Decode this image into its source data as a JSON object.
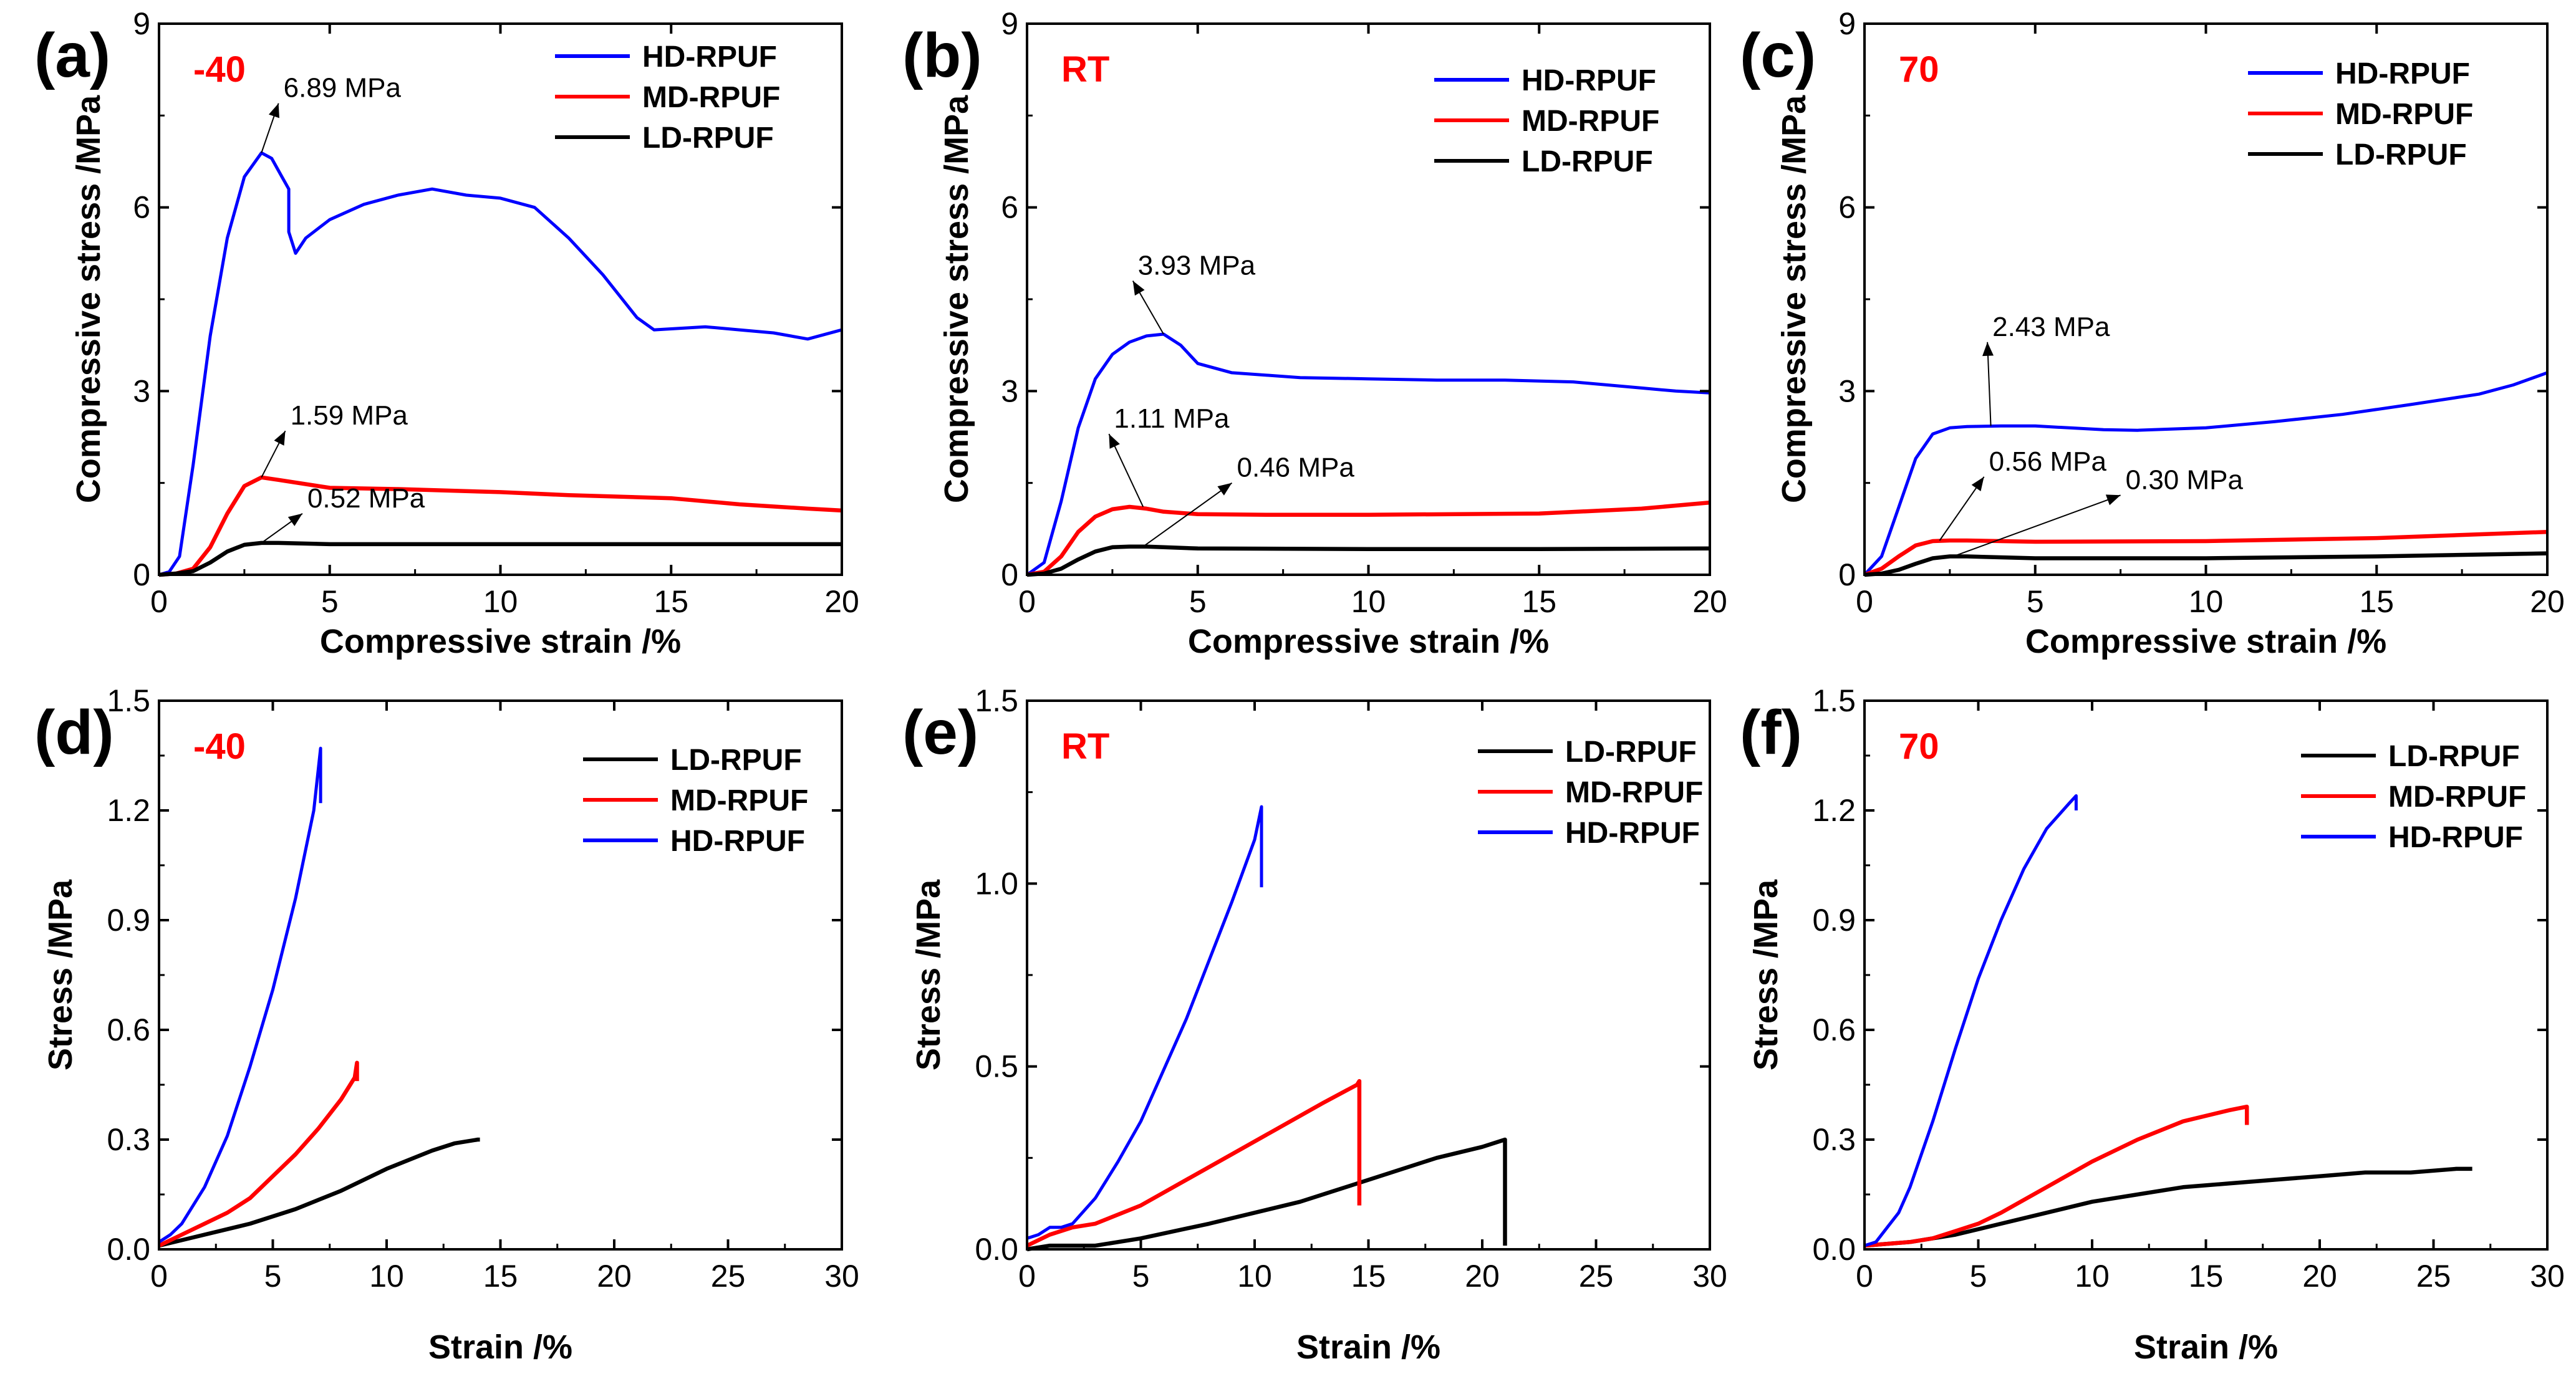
{
  "colors": {
    "blue": "#0000ff",
    "red": "#ff0000",
    "black": "#000000",
    "condition": "#ff0000"
  },
  "chart_data": [
    {
      "type": "line",
      "panel_label": "(a)",
      "condition": "-40",
      "xlabel": "Compressive strain /%",
      "ylabel": "Compressive stress /MPa",
      "xlim": [
        0,
        20
      ],
      "ylim": [
        0,
        9
      ],
      "xticks": [
        0,
        5,
        10,
        15,
        20
      ],
      "xtick_labels": [
        "0",
        "5",
        "10",
        "15",
        "20"
      ],
      "yticks": [
        0,
        3,
        6,
        9
      ],
      "ytick_labels": [
        "0",
        "3",
        "6",
        "9"
      ],
      "legend_order": [
        "HD-RPUF",
        "MD-RPUF",
        "LD-RPUF"
      ],
      "series": [
        {
          "name": "HD-RPUF",
          "color": "blue",
          "x": [
            0,
            0.3,
            0.6,
            1,
            1.5,
            2,
            2.5,
            3,
            3.3,
            3.6,
            3.8,
            3.8,
            4,
            4.3,
            5,
            6,
            7,
            8,
            9,
            10,
            11,
            12,
            13,
            14,
            14.5,
            16,
            17,
            18,
            19,
            20
          ],
          "y": [
            0,
            0.05,
            0.3,
            1.8,
            3.9,
            5.5,
            6.5,
            6.89,
            6.8,
            6.5,
            6.3,
            5.6,
            5.25,
            5.5,
            5.8,
            6.05,
            6.2,
            6.3,
            6.2,
            6.15,
            6.0,
            5.5,
            4.9,
            4.2,
            4.0,
            4.05,
            4.0,
            3.95,
            3.85,
            4.0
          ]
        },
        {
          "name": "MD-RPUF",
          "color": "red",
          "x": [
            0,
            0.5,
            1,
            1.5,
            2,
            2.5,
            3,
            3.5,
            5,
            7,
            10,
            12,
            15,
            17,
            19,
            20
          ],
          "y": [
            0,
            0.02,
            0.1,
            0.45,
            1.0,
            1.45,
            1.59,
            1.55,
            1.42,
            1.4,
            1.35,
            1.3,
            1.25,
            1.15,
            1.08,
            1.05
          ]
        },
        {
          "name": "LD-RPUF",
          "color": "black",
          "x": [
            0,
            0.5,
            1,
            1.5,
            2,
            2.5,
            3,
            3.5,
            5,
            10,
            15,
            20
          ],
          "y": [
            0,
            0.02,
            0.06,
            0.2,
            0.38,
            0.49,
            0.52,
            0.52,
            0.5,
            0.5,
            0.5,
            0.5
          ]
        }
      ],
      "annotations": [
        {
          "text": "6.89 MPa",
          "x": 3.0,
          "y": 6.89,
          "tx": 3.5,
          "ty": 7.7
        },
        {
          "text": "1.59 MPa",
          "x": 3.0,
          "y": 1.59,
          "tx": 3.7,
          "ty": 2.35
        },
        {
          "text": "0.52 MPa",
          "x": 3.0,
          "y": 0.52,
          "tx": 4.2,
          "ty": 1.0
        }
      ]
    },
    {
      "type": "line",
      "panel_label": "(b)",
      "condition": "RT",
      "xlabel": "Compressive strain /%",
      "ylabel": "Compressive stress /MPa",
      "xlim": [
        0,
        20
      ],
      "ylim": [
        0,
        9
      ],
      "xticks": [
        0,
        5,
        10,
        15,
        20
      ],
      "xtick_labels": [
        "0",
        "5",
        "10",
        "15",
        "20"
      ],
      "yticks": [
        0,
        3,
        6,
        9
      ],
      "ytick_labels": [
        "0",
        "3",
        "6",
        "9"
      ],
      "legend_order": [
        "HD-RPUF",
        "MD-RPUF",
        "LD-RPUF"
      ],
      "series": [
        {
          "name": "HD-RPUF",
          "color": "blue",
          "x": [
            0,
            0.5,
            1,
            1.5,
            2,
            2.5,
            3,
            3.5,
            4,
            4.5,
            5,
            6,
            8,
            10,
            12,
            14,
            16,
            18,
            19,
            20
          ],
          "y": [
            0,
            0.2,
            1.2,
            2.4,
            3.2,
            3.6,
            3.8,
            3.9,
            3.93,
            3.75,
            3.45,
            3.3,
            3.22,
            3.2,
            3.18,
            3.18,
            3.15,
            3.05,
            3.0,
            2.97
          ]
        },
        {
          "name": "MD-RPUF",
          "color": "red",
          "x": [
            0,
            0.5,
            1,
            1.5,
            2,
            2.5,
            3,
            3.5,
            4,
            5,
            7,
            10,
            15,
            18,
            20
          ],
          "y": [
            0,
            0.05,
            0.3,
            0.7,
            0.95,
            1.07,
            1.11,
            1.08,
            1.03,
            0.99,
            0.98,
            0.98,
            1.0,
            1.08,
            1.18
          ]
        },
        {
          "name": "LD-RPUF",
          "color": "black",
          "x": [
            0,
            0.5,
            1,
            1.5,
            2,
            2.5,
            3,
            3.5,
            4,
            5,
            10,
            15,
            20
          ],
          "y": [
            0,
            0.02,
            0.1,
            0.25,
            0.38,
            0.45,
            0.46,
            0.46,
            0.45,
            0.43,
            0.42,
            0.42,
            0.43
          ]
        }
      ],
      "annotations": [
        {
          "text": "3.93 MPa",
          "x": 4.0,
          "y": 3.93,
          "tx": 3.1,
          "ty": 4.8
        },
        {
          "text": "1.11 MPa",
          "x": 3.4,
          "y": 1.11,
          "tx": 2.4,
          "ty": 2.3
        },
        {
          "text": "0.46 MPa",
          "x": 3.4,
          "y": 0.46,
          "tx": 6.0,
          "ty": 1.5
        }
      ]
    },
    {
      "type": "line",
      "panel_label": "(c)",
      "condition": "70",
      "xlabel": "Compressive strain /%",
      "ylabel": "Compressive stress /MPa",
      "xlim": [
        0,
        20
      ],
      "ylim": [
        0,
        9
      ],
      "xticks": [
        0,
        5,
        10,
        15,
        20
      ],
      "xtick_labels": [
        "0",
        "5",
        "10",
        "15",
        "20"
      ],
      "yticks": [
        0,
        3,
        6,
        9
      ],
      "ytick_labels": [
        "0",
        "3",
        "6",
        "9"
      ],
      "legend_order": [
        "HD-RPUF",
        "MD-RPUF",
        "LD-RPUF"
      ],
      "series": [
        {
          "name": "HD-RPUF",
          "color": "blue",
          "x": [
            0,
            0.5,
            1,
            1.5,
            2,
            2.5,
            3,
            4,
            5,
            6,
            7,
            8,
            10,
            12,
            14,
            16,
            18,
            19,
            20
          ],
          "y": [
            0,
            0.3,
            1.1,
            1.9,
            2.3,
            2.4,
            2.42,
            2.43,
            2.43,
            2.4,
            2.37,
            2.36,
            2.4,
            2.5,
            2.62,
            2.78,
            2.95,
            3.1,
            3.3
          ]
        },
        {
          "name": "MD-RPUF",
          "color": "red",
          "x": [
            0,
            0.5,
            1,
            1.5,
            2,
            2.5,
            3,
            5,
            10,
            15,
            20
          ],
          "y": [
            0,
            0.1,
            0.3,
            0.48,
            0.55,
            0.56,
            0.56,
            0.54,
            0.55,
            0.6,
            0.7
          ]
        },
        {
          "name": "LD-RPUF",
          "color": "black",
          "x": [
            0,
            0.5,
            1,
            1.5,
            2,
            2.5,
            3,
            5,
            10,
            15,
            20
          ],
          "y": [
            0,
            0.02,
            0.08,
            0.18,
            0.27,
            0.3,
            0.3,
            0.27,
            0.27,
            0.3,
            0.35
          ]
        }
      ],
      "annotations": [
        {
          "text": "2.43 MPa",
          "x": 3.7,
          "y": 2.43,
          "tx": 3.6,
          "ty": 3.8
        },
        {
          "text": "0.56 MPa",
          "x": 2.2,
          "y": 0.56,
          "tx": 3.5,
          "ty": 1.6
        },
        {
          "text": "0.30 MPa",
          "x": 2.6,
          "y": 0.3,
          "tx": 7.5,
          "ty": 1.3
        }
      ]
    },
    {
      "type": "line",
      "panel_label": "(d)",
      "condition": "-40",
      "xlabel": "Strain /%",
      "ylabel": "Stress /MPa",
      "xlim": [
        0,
        30
      ],
      "ylim": [
        0,
        1.5
      ],
      "xticks": [
        0,
        5,
        10,
        15,
        20,
        25,
        30
      ],
      "xtick_labels": [
        "0",
        "5",
        "10",
        "15",
        "20",
        "25",
        "30"
      ],
      "yticks": [
        0,
        0.3,
        0.6,
        0.9,
        1.2,
        1.5
      ],
      "ytick_labels": [
        "0.0",
        "0.3",
        "0.6",
        "0.9",
        "1.2",
        "1.5"
      ],
      "legend_order": [
        "LD-RPUF",
        "MD-RPUF",
        "HD-RPUF"
      ],
      "series": [
        {
          "name": "LD-RPUF",
          "color": "black",
          "x": [
            0,
            2,
            4,
            6,
            8,
            10,
            12,
            13,
            14,
            14.1
          ],
          "y": [
            0.01,
            0.04,
            0.07,
            0.11,
            0.16,
            0.22,
            0.27,
            0.29,
            0.3,
            0.3
          ]
        },
        {
          "name": "MD-RPUF",
          "color": "red",
          "x": [
            0,
            1,
            2,
            3,
            4,
            5,
            6,
            7,
            8,
            8.6,
            8.7,
            8.7
          ],
          "y": [
            0.01,
            0.04,
            0.07,
            0.1,
            0.14,
            0.2,
            0.26,
            0.33,
            0.41,
            0.47,
            0.51,
            0.46
          ]
        },
        {
          "name": "HD-RPUF",
          "color": "blue",
          "x": [
            0,
            0.5,
            1,
            2,
            3,
            4,
            5,
            6,
            6.8,
            7.1,
            7.1
          ],
          "y": [
            0.02,
            0.04,
            0.07,
            0.17,
            0.31,
            0.5,
            0.71,
            0.96,
            1.2,
            1.37,
            1.22
          ]
        }
      ]
    },
    {
      "type": "line",
      "panel_label": "(e)",
      "condition": "RT",
      "xlabel": "Strain /%",
      "ylabel": "Stress /MPa",
      "xlim": [
        0,
        30
      ],
      "ylim": [
        0,
        1.5
      ],
      "xticks": [
        0,
        5,
        10,
        15,
        20,
        25,
        30
      ],
      "xtick_labels": [
        "0",
        "5",
        "10",
        "15",
        "20",
        "25",
        "30"
      ],
      "yticks": [
        0,
        0.5,
        1.0,
        1.5
      ],
      "ytick_labels": [
        "0.0",
        "0.5",
        "1.0",
        "1.5"
      ],
      "legend_order": [
        "LD-RPUF",
        "MD-RPUF",
        "HD-RPUF"
      ],
      "series": [
        {
          "name": "LD-RPUF",
          "color": "black",
          "x": [
            0,
            1,
            2,
            3,
            5,
            8,
            10,
            12,
            14,
            16,
            18,
            20,
            21,
            21
          ],
          "y": [
            0,
            0.01,
            0.01,
            0.01,
            0.03,
            0.07,
            0.1,
            0.13,
            0.17,
            0.21,
            0.25,
            0.28,
            0.3,
            0.01
          ]
        },
        {
          "name": "MD-RPUF",
          "color": "red",
          "x": [
            0,
            1,
            2,
            3,
            5,
            7,
            9,
            11,
            13,
            14.5,
            14.6,
            14.6
          ],
          "y": [
            0.01,
            0.04,
            0.06,
            0.07,
            0.12,
            0.19,
            0.26,
            0.33,
            0.4,
            0.45,
            0.46,
            0.12
          ]
        },
        {
          "name": "HD-RPUF",
          "color": "blue",
          "x": [
            0,
            0.5,
            1,
            1.5,
            2,
            3,
            4,
            5,
            6,
            7,
            8,
            9,
            10,
            10.3,
            10.3
          ],
          "y": [
            0.03,
            0.04,
            0.06,
            0.06,
            0.07,
            0.14,
            0.24,
            0.35,
            0.49,
            0.63,
            0.79,
            0.95,
            1.12,
            1.21,
            0.99
          ]
        }
      ]
    },
    {
      "type": "line",
      "panel_label": "(f)",
      "condition": "70",
      "xlabel": "Strain /%",
      "ylabel": "Stress /MPa",
      "xlim": [
        0,
        30
      ],
      "ylim": [
        0,
        1.5
      ],
      "xticks": [
        0,
        5,
        10,
        15,
        20,
        25,
        30
      ],
      "xtick_labels": [
        "0",
        "5",
        "10",
        "15",
        "20",
        "25",
        "30"
      ],
      "yticks": [
        0,
        0.3,
        0.6,
        0.9,
        1.2,
        1.5
      ],
      "ytick_labels": [
        "0.0",
        "0.3",
        "0.6",
        "0.9",
        "1.2",
        "1.5"
      ],
      "legend_order": [
        "LD-RPUF",
        "MD-RPUF",
        "HD-RPUF"
      ],
      "series": [
        {
          "name": "LD-RPUF",
          "color": "black",
          "x": [
            0,
            2,
            4,
            6,
            8,
            10,
            12,
            14,
            16,
            18,
            20,
            22,
            24,
            26,
            26.7
          ],
          "y": [
            0.01,
            0.02,
            0.04,
            0.07,
            0.1,
            0.13,
            0.15,
            0.17,
            0.18,
            0.19,
            0.2,
            0.21,
            0.21,
            0.22,
            0.22
          ]
        },
        {
          "name": "MD-RPUF",
          "color": "red",
          "x": [
            0,
            2,
            3,
            4,
            5,
            6,
            8,
            10,
            12,
            14,
            16,
            16.8,
            16.8
          ],
          "y": [
            0.01,
            0.02,
            0.03,
            0.05,
            0.07,
            0.1,
            0.17,
            0.24,
            0.3,
            0.35,
            0.38,
            0.39,
            0.34
          ]
        },
        {
          "name": "HD-RPUF",
          "color": "blue",
          "x": [
            0,
            0.5,
            1,
            1.5,
            2,
            3,
            4,
            5,
            6,
            7,
            8,
            9,
            9.3,
            9.3
          ],
          "y": [
            0.01,
            0.02,
            0.06,
            0.1,
            0.17,
            0.35,
            0.55,
            0.74,
            0.9,
            1.04,
            1.15,
            1.22,
            1.24,
            1.2
          ]
        }
      ]
    }
  ]
}
